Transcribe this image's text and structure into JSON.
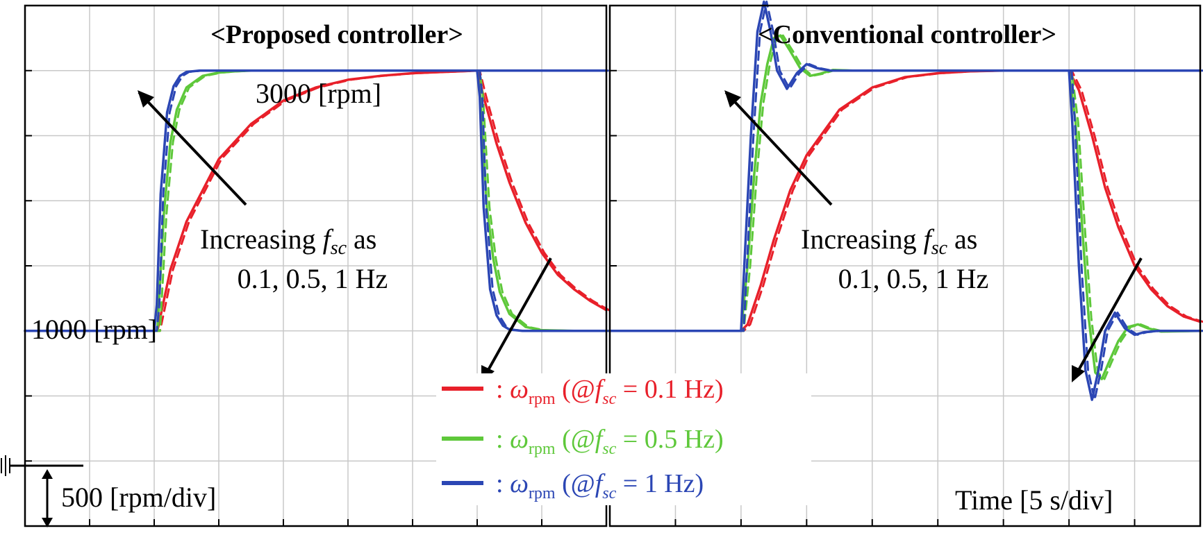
{
  "chart_data": [
    {
      "type": "line",
      "title": "<Proposed controller>",
      "x_unit": "div",
      "y_unit": "rpm",
      "xlim": [
        0,
        9
      ],
      "ylim": [
        -500,
        3500
      ],
      "grid": true,
      "series": [
        {
          "name": "ωrpm (@fsc = 0.1 Hz)",
          "color": "#e8202a",
          "x": [
            0,
            2,
            2.05,
            2.25,
            2.5,
            3,
            3.5,
            4,
            4.5,
            5,
            5.5,
            6,
            6.5,
            7.0,
            7.1,
            7.3,
            7.5,
            7.75,
            8,
            8.25,
            8.5,
            8.75,
            9
          ],
          "y": [
            1000,
            1000,
            1000,
            1470,
            1840,
            2320,
            2590,
            2770,
            2870,
            2930,
            2960,
            2980,
            2990,
            3000,
            2800,
            2440,
            2140,
            1830,
            1600,
            1430,
            1320,
            1230,
            1160
          ]
        },
        {
          "name": "ωrpm (@fsc = 0.5 Hz)",
          "color": "#5ec83a",
          "x": [
            0,
            2,
            2.05,
            2.15,
            2.25,
            2.35,
            2.5,
            2.75,
            3,
            3.25,
            3.5,
            4,
            7.0,
            7.05,
            7.15,
            7.25,
            7.35,
            7.5,
            7.75,
            8,
            8.5,
            9
          ],
          "y": [
            1000,
            1000,
            1000,
            1900,
            2450,
            2700,
            2870,
            2960,
            2985,
            2995,
            3000,
            3000,
            3000,
            2800,
            1950,
            1550,
            1300,
            1130,
            1030,
            1005,
            1000,
            1000
          ]
        },
        {
          "name": "ωrpm (@fsc = 1 Hz)",
          "color": "#2b46b4",
          "x": [
            0,
            2,
            2.04,
            2.1,
            2.2,
            2.3,
            2.4,
            2.5,
            2.7,
            9.0
          ],
          "y": [
            1000,
            1000,
            1200,
            2050,
            2680,
            2880,
            2960,
            2990,
            3000,
            3000
          ],
          "x2": [
            7.0,
            7.04,
            7.1,
            7.2,
            7.3,
            7.4,
            7.5,
            7.7,
            9
          ],
          "y2": [
            3000,
            2800,
            1950,
            1320,
            1120,
            1040,
            1010,
            1000,
            1000
          ]
        }
      ],
      "annotations": [
        "3000 [rpm]",
        "1000 [rpm]",
        "Increasing fsc as",
        "0.1, 0.5, 1 Hz",
        "500 [rpm/div]"
      ]
    },
    {
      "type": "line",
      "title": "<Conventional controller>",
      "x_unit": "div",
      "y_unit": "rpm",
      "xlim": [
        0,
        9
      ],
      "ylim": [
        -500,
        3500
      ],
      "grid": true,
      "series": [
        {
          "name": "ωrpm (@fsc = 0.1 Hz)",
          "color": "#e8202a",
          "x": [
            0,
            2,
            2.1,
            2.3,
            2.5,
            2.75,
            3,
            3.5,
            4,
            4.5,
            5,
            5.5,
            6,
            7.0,
            7.15,
            7.35,
            7.55,
            7.75,
            8,
            8.25,
            8.5,
            8.75,
            9
          ],
          "y": [
            1000,
            1000,
            1050,
            1350,
            1700,
            2080,
            2350,
            2700,
            2870,
            2950,
            2980,
            2995,
            3000,
            3000,
            2850,
            2500,
            2100,
            1800,
            1500,
            1320,
            1190,
            1110,
            1070
          ]
        },
        {
          "name": "ωrpm (@fsc = 0.5 Hz)",
          "color": "#5ec83a",
          "x": [
            0,
            2,
            2.1,
            2.2,
            2.3,
            2.4,
            2.5,
            2.6,
            2.75,
            2.9,
            3.05,
            3.2,
            3.4,
            3.7,
            7.0,
            7.1,
            7.2,
            7.3,
            7.4,
            7.5,
            7.6,
            7.75,
            7.9,
            8.05,
            8.2,
            8.4,
            9
          ],
          "y": [
            1000,
            1000,
            1500,
            2200,
            2750,
            3050,
            3250,
            3270,
            3150,
            3020,
            2960,
            2975,
            3005,
            3000,
            3000,
            2600,
            1800,
            1100,
            680,
            630,
            750,
            920,
            1030,
            1050,
            1020,
            995,
            1000
          ]
        },
        {
          "name": "ωrpm (@fsc = 1 Hz)",
          "color": "#2b46b4",
          "x": [
            0,
            2,
            2.05,
            2.15,
            2.25,
            2.35,
            2.45,
            2.55,
            2.7,
            2.85,
            3.0,
            3.15,
            3.35,
            3.6,
            9.0
          ],
          "y": [
            1000,
            1000,
            1500,
            2500,
            3300,
            3530,
            3300,
            3000,
            2860,
            2980,
            3050,
            3020,
            3000,
            3000,
            3000
          ],
          "x2": [
            7.0,
            7.05,
            7.15,
            7.25,
            7.35,
            7.45,
            7.55,
            7.7,
            7.85,
            8.0,
            8.15,
            8.35,
            9
          ],
          "y2": [
            3000,
            2600,
            1500,
            700,
            470,
            700,
            1000,
            1140,
            1020,
            970,
            990,
            1000,
            1000
          ]
        }
      ],
      "annotations": [
        "Increasing fsc as",
        "0.1, 0.5, 1 Hz",
        "Time [5 s/div]"
      ]
    }
  ],
  "titles": {
    "left": "<Proposed controller>",
    "right": "<Conventional controller>"
  },
  "annotations": {
    "rpm_3000": "3000 [rpm]",
    "rpm_1000": "1000 [rpm]",
    "increasing_prefix": "Increasing",
    "f": "f",
    "sc": "sc",
    "as": "as",
    "freqs": "0.1, 0.5, 1 Hz",
    "scale": "500 [rpm/div]",
    "time": "Time [5 s/div]"
  },
  "legend": [
    {
      "colon": ":",
      "omega": "ω",
      "sub": "rpm",
      "open": "(@",
      "f": "f",
      "sc": "sc",
      "value": "= 0.1 Hz)",
      "color": "#e8202a"
    },
    {
      "colon": ":",
      "omega": "ω",
      "sub": "rpm",
      "open": "(@",
      "f": "f",
      "sc": "sc",
      "value": "= 0.5 Hz)",
      "color": "#5ec83a"
    },
    {
      "colon": ":",
      "omega": "ω",
      "sub": "rpm",
      "open": "(@",
      "f": "f",
      "sc": "sc",
      "value": "= 1 Hz)",
      "color": "#2b46b4"
    }
  ],
  "colors": {
    "red": "#e8202a",
    "green": "#5ec83a",
    "blue": "#2b46b4",
    "grid": "#c8c8c8",
    "frame": "#000000"
  }
}
